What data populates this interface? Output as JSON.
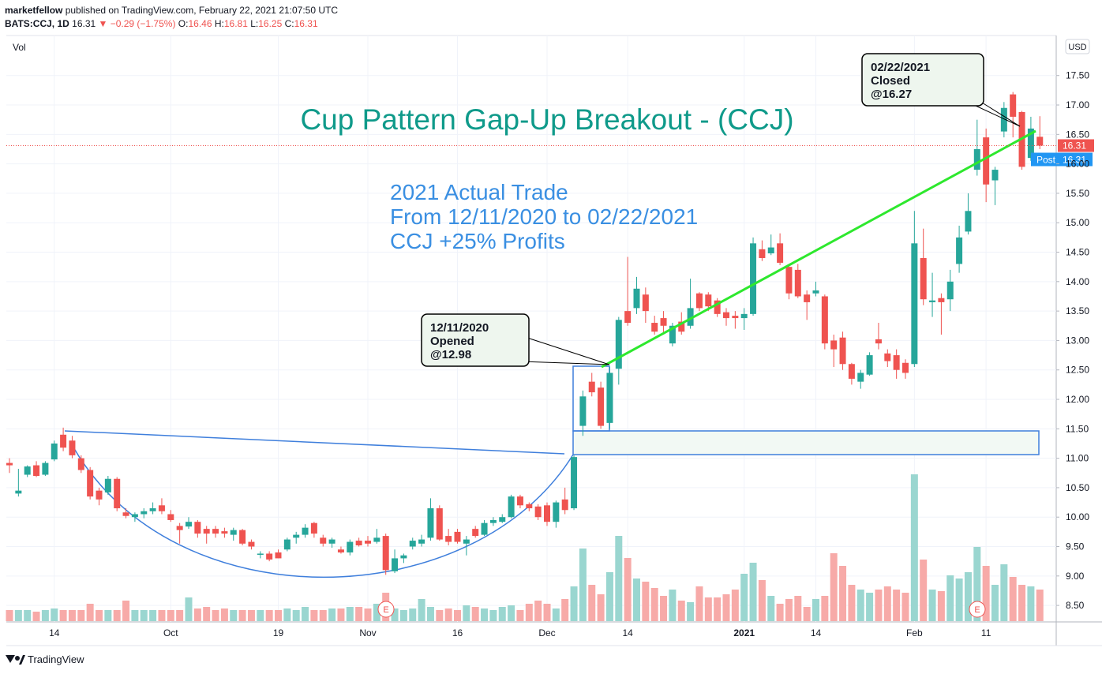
{
  "header": {
    "publisher": "marketfellow",
    "published": "published on TradingView.com, February 22, 2021 21:07:50 UTC",
    "symbol": "BATS:CCJ, 1D",
    "last": "16.31",
    "change": "▼ −0.29 (−1.75%)",
    "ohlc": [
      {
        "label": "O:",
        "value": "16.46"
      },
      {
        "label": "H:",
        "value": "16.81"
      },
      {
        "label": "L:",
        "value": "16.25"
      },
      {
        "label": "C:",
        "value": "16.31"
      }
    ]
  },
  "footer": {
    "brand": "TradingView"
  },
  "chart_data": {
    "type": "candlestick",
    "title": "Cup Pattern Gap-Up Breakout - (CCJ)",
    "subtitle": [
      "2021 Actual Trade",
      "From 12/11/2020 to 02/22/2021",
      "CCJ +25% Profits"
    ],
    "annotations": [
      [
        "12/11/2020",
        "Opened",
        "@12.98"
      ],
      [
        "02/22/2021",
        "Closed",
        "@16.27"
      ]
    ],
    "volume_label": "Vol",
    "currency": "USD",
    "post_label": "Post",
    "earnings_marker": "E",
    "up_color": "#26a69a",
    "down_color": "#ef5350",
    "volume_up_color": "#9ad6d0",
    "volume_down_color": "#f7aaa8",
    "grid": true,
    "ylim": [
      8.22,
      18.18
    ],
    "yticks": [
      {
        "value": 8.5,
        "label": "8.50"
      },
      {
        "value": 9,
        "label": "9.00"
      },
      {
        "value": 9.5,
        "label": "9.50"
      },
      {
        "value": 10,
        "label": "10.00"
      },
      {
        "value": 10.5,
        "label": "10.50"
      },
      {
        "value": 11,
        "label": "11.00"
      },
      {
        "value": 11.5,
        "label": "11.50"
      },
      {
        "value": 12,
        "label": "12.00"
      },
      {
        "value": 12.5,
        "label": "12.50"
      },
      {
        "value": 13,
        "label": "13.00"
      },
      {
        "value": 13.5,
        "label": "13.50"
      },
      {
        "value": 14,
        "label": "14.00"
      },
      {
        "value": 14.5,
        "label": "14.50"
      },
      {
        "value": 15,
        "label": "15.00"
      },
      {
        "value": 15.5,
        "label": "15.50"
      },
      {
        "value": 16,
        "label": "16.00"
      },
      {
        "value": 16.5,
        "label": "16.50"
      },
      {
        "value": 17,
        "label": "17.00"
      },
      {
        "value": 17.5,
        "label": "17.50"
      }
    ],
    "categories": [
      null,
      null,
      null,
      null,
      null,
      "14",
      null,
      null,
      null,
      null,
      null,
      null,
      null,
      null,
      null,
      null,
      null,
      null,
      "Oct",
      null,
      null,
      null,
      null,
      null,
      null,
      null,
      null,
      null,
      null,
      null,
      "19",
      null,
      null,
      null,
      null,
      null,
      null,
      null,
      null,
      null,
      "Nov",
      null,
      null,
      null,
      null,
      null,
      null,
      null,
      null,
      null,
      "16",
      null,
      null,
      null,
      null,
      null,
      null,
      null,
      null,
      null,
      "Dec",
      null,
      null,
      null,
      null,
      null,
      null,
      null,
      null,
      "14",
      null,
      null,
      null,
      null,
      null,
      null,
      null,
      null,
      null,
      null,
      null,
      null,
      "2021",
      null,
      null,
      null,
      null,
      null,
      null,
      null,
      "14",
      null,
      null,
      null,
      null,
      null,
      null,
      null,
      null,
      null,
      null,
      "Feb",
      null,
      null,
      null,
      null,
      null,
      null,
      null,
      "11",
      null,
      null,
      null,
      null,
      null,
      null
    ],
    "open": [
      10.92,
      10.4,
      10.72,
      10.88,
      10.72,
      10.98,
      11.4,
      11.3,
      11.0,
      10.8,
      10.45,
      10.42,
      10.65,
      10.08,
      10.0,
      10.05,
      10.1,
      10.2,
      10.05,
      9.85,
      9.84,
      9.92,
      9.8,
      9.8,
      9.76,
      9.7,
      9.78,
      9.58,
      9.36,
      9.38,
      9.4,
      9.45,
      9.65,
      9.7,
      9.9,
      9.65,
      9.55,
      9.45,
      9.4,
      9.6,
      9.6,
      9.58,
      9.68,
      9.08,
      9.3,
      9.5,
      9.55,
      9.65,
      10.15,
      9.68,
      9.75,
      9.55,
      9.8,
      9.7,
      9.9,
      9.92,
      10.0,
      10.35,
      10.22,
      10.18,
      10.2,
      9.92,
      10.3,
      10.15,
      11.55,
      12.3,
      12.2,
      11.6,
      12.52,
      13.5,
      13.55,
      13.78,
      13.3,
      13.38,
      12.95,
      13.32,
      13.25,
      13.8,
      13.78,
      13.68,
      13.48,
      13.42,
      13.38,
      13.45,
      14.55,
      14.48,
      14.65,
      14.25,
      14.2,
      13.78,
      13.8,
      13.75,
      13.0,
      13.05,
      12.6,
      12.3,
      12.42,
      13.02,
      12.78,
      12.75,
      12.62,
      12.6,
      14.4,
      13.65,
      13.72,
      13.7,
      14.3,
      14.85,
      15.9,
      16.45,
      15.72,
      16.55,
      17.18,
      16.88,
      16.1,
      16.46
    ],
    "high": [
      11.0,
      10.82,
      10.88,
      10.95,
      10.95,
      11.3,
      11.52,
      11.38,
      11.05,
      10.85,
      10.5,
      10.7,
      10.68,
      10.15,
      10.08,
      10.15,
      10.25,
      10.32,
      10.12,
      9.9,
      10.0,
      9.95,
      9.85,
      9.85,
      9.82,
      9.82,
      9.8,
      9.62,
      9.42,
      9.42,
      9.45,
      9.65,
      9.75,
      9.88,
      9.92,
      9.7,
      9.65,
      9.5,
      9.62,
      9.65,
      9.68,
      9.8,
      9.72,
      9.45,
      9.38,
      9.65,
      9.7,
      10.32,
      10.2,
      9.8,
      9.8,
      9.68,
      9.85,
      9.95,
      10.0,
      10.05,
      10.38,
      10.38,
      10.25,
      10.22,
      10.25,
      10.28,
      10.5,
      11.05,
      12.15,
      12.45,
      12.3,
      12.55,
      13.4,
      14.42,
      14.08,
      13.9,
      13.42,
      13.5,
      13.3,
      13.48,
      14.05,
      13.82,
      13.82,
      13.72,
      13.55,
      13.5,
      13.55,
      14.75,
      14.7,
      14.8,
      14.82,
      14.3,
      14.3,
      13.85,
      14.0,
      13.78,
      13.1,
      13.15,
      12.62,
      12.5,
      12.8,
      13.3,
      12.85,
      12.85,
      12.68,
      15.2,
      14.9,
      14.15,
      13.8,
      14.2,
      14.95,
      15.5,
      16.75,
      16.6,
      15.95,
      17.05,
      17.22,
      16.9,
      16.8,
      16.81
    ],
    "low": [
      10.75,
      10.35,
      10.68,
      10.68,
      10.7,
      10.95,
      11.12,
      11.0,
      10.75,
      10.3,
      10.2,
      10.38,
      10.1,
      9.98,
      9.92,
      9.98,
      10.05,
      10.05,
      9.92,
      9.55,
      9.8,
      9.65,
      9.55,
      9.65,
      9.65,
      9.6,
      9.52,
      9.45,
      9.3,
      9.25,
      9.3,
      9.42,
      9.55,
      9.65,
      9.65,
      9.5,
      9.48,
      9.38,
      9.35,
      9.5,
      9.5,
      9.55,
      9.02,
      9.05,
      9.22,
      9.45,
      9.5,
      9.6,
      9.6,
      9.52,
      9.55,
      9.35,
      9.65,
      9.68,
      9.85,
      9.9,
      9.98,
      10.15,
      10.1,
      9.95,
      9.85,
      9.82,
      10.05,
      10.12,
      11.38,
      12.05,
      11.5,
      11.5,
      12.25,
      13.25,
      13.45,
      13.3,
      13.1,
      13.1,
      12.9,
      13.1,
      13.2,
      13.5,
      13.5,
      13.4,
      13.25,
      13.2,
      13.18,
      13.42,
      14.35,
      14.45,
      14.28,
      13.7,
      13.72,
      13.35,
      13.75,
      12.85,
      12.55,
      12.5,
      12.25,
      12.18,
      12.4,
      12.85,
      12.55,
      12.35,
      12.35,
      12.55,
      13.6,
      13.4,
      13.1,
      13.5,
      14.15,
      14.8,
      15.8,
      15.35,
      15.3,
      16.45,
      16.45,
      15.9,
      16.05,
      16.25
    ],
    "close": [
      10.88,
      10.45,
      10.86,
      10.7,
      10.92,
      11.25,
      11.18,
      11.05,
      10.8,
      10.35,
      10.3,
      10.65,
      10.15,
      10.02,
      10.05,
      10.1,
      10.15,
      10.1,
      9.95,
      9.78,
      9.92,
      9.72,
      9.72,
      9.72,
      9.72,
      9.78,
      9.55,
      9.5,
      9.38,
      9.28,
      9.3,
      9.62,
      9.7,
      9.82,
      9.72,
      9.55,
      9.62,
      9.4,
      9.58,
      9.52,
      9.55,
      9.65,
      9.1,
      9.3,
      9.35,
      9.6,
      9.62,
      10.15,
      9.62,
      9.58,
      9.58,
      9.62,
      9.68,
      9.9,
      9.95,
      10.0,
      10.35,
      10.2,
      10.15,
      10.0,
      9.92,
      10.25,
      10.12,
      11.02,
      12.05,
      12.12,
      11.55,
      12.45,
      13.35,
      13.3,
      13.88,
      13.5,
      13.15,
      13.25,
      13.25,
      13.15,
      13.55,
      13.55,
      13.58,
      13.45,
      13.38,
      13.38,
      13.45,
      14.65,
      14.4,
      14.58,
      14.32,
      13.8,
      13.75,
      13.65,
      13.85,
      12.95,
      12.85,
      12.6,
      12.35,
      12.45,
      12.75,
      12.95,
      12.65,
      12.5,
      12.45,
      14.65,
      13.7,
      13.68,
      13.65,
      14.0,
      14.75,
      15.2,
      16.25,
      15.65,
      15.9,
      16.95,
      16.8,
      15.95,
      16.6,
      16.31
    ],
    "volume": [
      14,
      14,
      14,
      12,
      14,
      16,
      14,
      14,
      14,
      22,
      14,
      14,
      14,
      26,
      14,
      14,
      14,
      14,
      14,
      14,
      30,
      16,
      18,
      14,
      16,
      14,
      14,
      14,
      14,
      14,
      14,
      16,
      14,
      18,
      14,
      14,
      16,
      16,
      18,
      18,
      16,
      22,
      36,
      16,
      14,
      16,
      28,
      18,
      14,
      16,
      14,
      20,
      18,
      16,
      14,
      18,
      20,
      14,
      22,
      26,
      22,
      16,
      28,
      44,
      92,
      46,
      34,
      62,
      108,
      80,
      54,
      50,
      42,
      32,
      40,
      26,
      24,
      44,
      30,
      30,
      34,
      40,
      60,
      74,
      52,
      32,
      22,
      28,
      32,
      18,
      28,
      32,
      86,
      70,
      46,
      40,
      36,
      40,
      44,
      40,
      36,
      186,
      78,
      40,
      38,
      58,
      54,
      62,
      94,
      70,
      46,
      72,
      56,
      46,
      44,
      40
    ]
  }
}
